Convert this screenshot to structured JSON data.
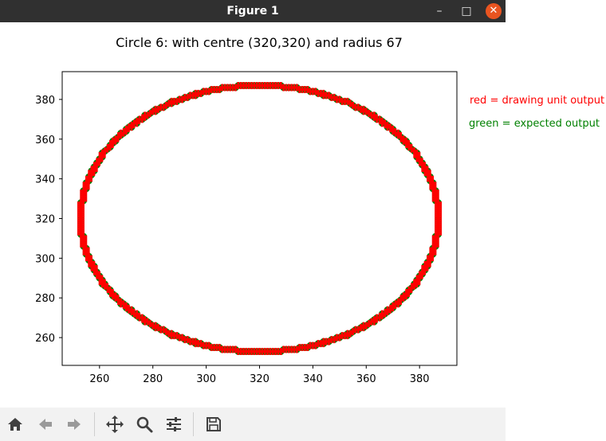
{
  "window": {
    "title": "Figure 1",
    "minimize_glyph": "–",
    "maximize_glyph": "□",
    "close_glyph": "✕"
  },
  "toolbar": {
    "buttons": [
      "home-icon",
      "back-arrow-icon",
      "forward-arrow-icon",
      "pan-icon",
      "zoom-icon",
      "configure-subplots-icon",
      "save-icon"
    ]
  },
  "colors": {
    "red": "#ff0000",
    "green": "#008000",
    "titlebar": "#303030",
    "close": "#e95420"
  },
  "chart_data": {
    "type": "scatter",
    "title": "Circle 6: with centre (320,320) and radius 67",
    "xlabel": "",
    "ylabel": "",
    "xlim": [
      246,
      394
    ],
    "ylim": [
      246,
      394
    ],
    "xticks": [
      260,
      280,
      300,
      320,
      340,
      360,
      380
    ],
    "yticks": [
      260,
      280,
      300,
      320,
      340,
      360,
      380
    ],
    "grid": false,
    "annotations": [
      {
        "text": "red = drawing unit output",
        "color": "#ff0000"
      },
      {
        "text": "green = expected output",
        "color": "#008000"
      }
    ],
    "series": [
      {
        "color": "#008000",
        "marker": "circle",
        "shape": "circle",
        "center": [
          320,
          320
        ],
        "radius": 67
      },
      {
        "color": "#ff0000",
        "marker": "plus",
        "shape": "circle",
        "center": [
          320,
          320
        ],
        "radius": 67
      }
    ]
  }
}
